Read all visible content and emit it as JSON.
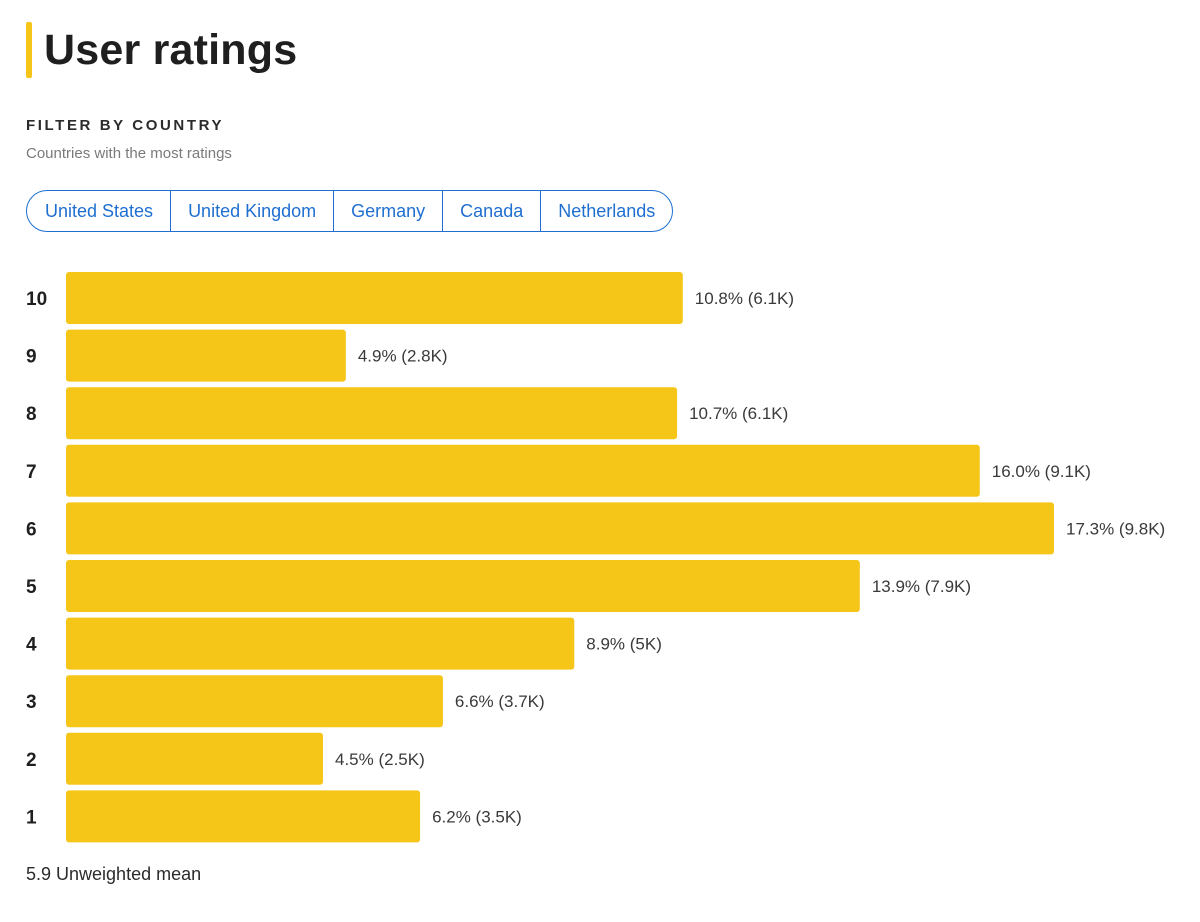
{
  "header": {
    "title": "User ratings"
  },
  "filter": {
    "heading": "FILTER BY COUNTRY",
    "subheading": "Countries with the most ratings",
    "countries": [
      "United States",
      "United Kingdom",
      "Germany",
      "Canada",
      "Netherlands"
    ]
  },
  "chart_data": {
    "type": "bar",
    "orientation": "horizontal",
    "title": "User ratings",
    "categories": [
      "10",
      "9",
      "8",
      "7",
      "6",
      "5",
      "4",
      "3",
      "2",
      "1"
    ],
    "values": [
      10.8,
      4.9,
      10.7,
      16.0,
      17.3,
      13.9,
      8.9,
      6.6,
      4.5,
      6.2
    ],
    "counts": [
      "6.1K",
      "2.8K",
      "6.1K",
      "9.1K",
      "9.8K",
      "7.9K",
      "5K",
      "3.7K",
      "2.5K",
      "3.5K"
    ],
    "labels": [
      "10.8% (6.1K)",
      "4.9% (2.8K)",
      "10.7% (6.1K)",
      "16.0% (9.1K)",
      "17.3% (9.8K)",
      "13.9% (7.9K)",
      "8.9% (5K)",
      "6.6% (3.7K)",
      "4.5% (2.5K)",
      "6.2% (3.5K)"
    ],
    "unit": "%",
    "xlim": [
      0,
      17.3
    ],
    "bar_color": "#f5c518",
    "grid": false
  },
  "footer": {
    "mean_text": "5.9 Unweighted mean"
  }
}
